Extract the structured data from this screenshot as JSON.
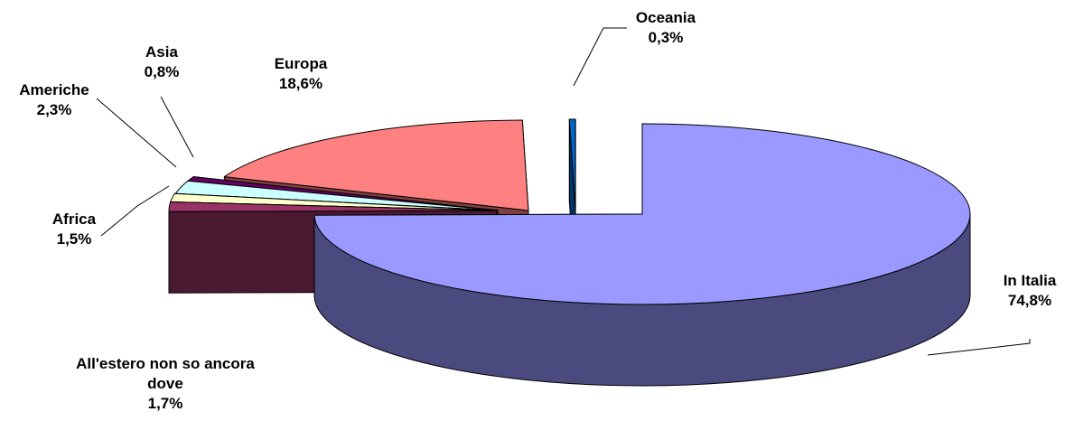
{
  "chart_data": {
    "type": "pie",
    "three_d": true,
    "title": "",
    "legend": "none",
    "slices": [
      {
        "name": "In Italia",
        "value": 74.8,
        "value_label": "74,8%",
        "label_lines": [
          "In Italia",
          "74,8%"
        ],
        "color": "#9999ff",
        "side_color": "#4a4a7e"
      },
      {
        "name": "All'estero non so ancora dove",
        "value": 1.7,
        "value_label": "1,7%",
        "label_lines": [
          "All'estero non so ancora",
          "dove",
          "1,7%"
        ],
        "color": "#993366",
        "side_color": "#4a1a30"
      },
      {
        "name": "Africa",
        "value": 1.5,
        "value_label": "1,5%",
        "label_lines": [
          "Africa",
          "1,5%"
        ],
        "color": "#ffffcc",
        "side_color": "#808066"
      },
      {
        "name": "Americhe",
        "value": 2.3,
        "value_label": "2,3%",
        "label_lines": [
          "Americhe",
          "2,3%"
        ],
        "color": "#ccffff",
        "side_color": "#668080"
      },
      {
        "name": "Asia",
        "value": 0.8,
        "value_label": "0,8%",
        "label_lines": [
          "Asia",
          "0,8%"
        ],
        "color": "#660066",
        "side_color": "#330033"
      },
      {
        "name": "Europa",
        "value": 18.6,
        "value_label": "18,6%",
        "label_lines": [
          "Europa",
          "18,6%"
        ],
        "color": "#ff8080",
        "side_color": "#804040"
      },
      {
        "name": "Oceania",
        "value": 0.3,
        "value_label": "0,3%",
        "label_lines": [
          "Oceania",
          "0,3%"
        ],
        "color": "#0066cc",
        "side_color": "#003366"
      }
    ]
  }
}
